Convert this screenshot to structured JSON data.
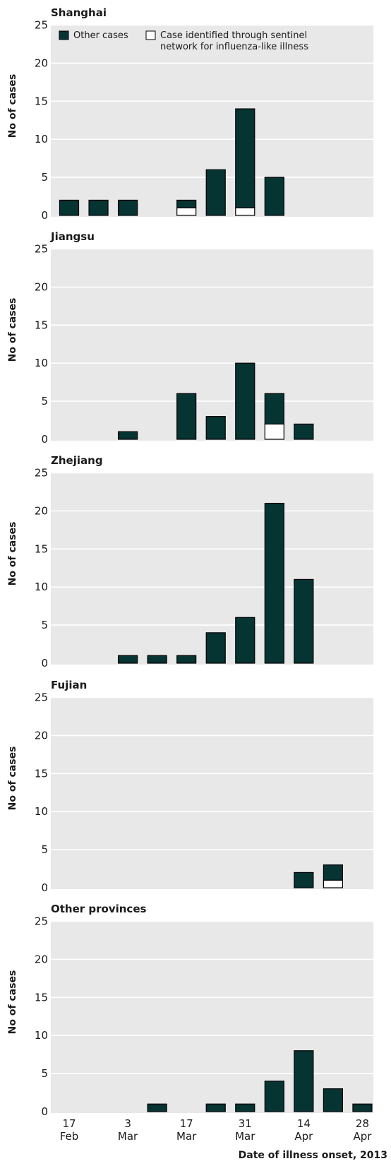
{
  "chart_data": {
    "type": "bar",
    "stacked": true,
    "xlabel": "Date of illness onset, 2013",
    "ylabel": "No of cases",
    "ylim": [
      0,
      25
    ],
    "yticks": [
      0,
      5,
      10,
      15,
      20,
      25
    ],
    "categories": [
      "17 Feb",
      "24 Feb",
      "3 Mar",
      "10 Mar",
      "17 Mar",
      "24 Mar",
      "31 Mar",
      "7 Apr",
      "14 Apr",
      "21 Apr",
      "28 Apr"
    ],
    "x_tick_labels": [
      {
        "category": "17 Feb",
        "line1": "17",
        "line2": "Feb"
      },
      {
        "category": "3 Mar",
        "line1": "3",
        "line2": "Mar"
      },
      {
        "category": "17 Mar",
        "line1": "17",
        "line2": "Mar"
      },
      {
        "category": "31 Mar",
        "line1": "31",
        "line2": "Mar"
      },
      {
        "category": "14 Apr",
        "line1": "14",
        "line2": "Apr"
      },
      {
        "category": "28 Apr",
        "line1": "28",
        "line2": "Apr"
      }
    ],
    "legend": {
      "placement": "top",
      "items": [
        {
          "name": "Other cases",
          "color": "#063433"
        },
        {
          "name": "Case identified through sentinel",
          "name_line2": "network for influenza-like illness",
          "color": "#ffffff"
        }
      ]
    },
    "colors": {
      "other": "#063433",
      "sentinel": "#ffffff",
      "background": "#e8e8e8",
      "grid": "#ffffff"
    },
    "grid": true,
    "panels": [
      {
        "title": "Shanghai",
        "series": [
          {
            "name": "Case identified through sentinel network for influenza-like illness",
            "values": [
              0,
              0,
              0,
              0,
              1,
              0,
              1,
              0,
              0,
              0,
              0
            ]
          },
          {
            "name": "Other cases",
            "values": [
              2,
              2,
              2,
              0,
              1,
              6,
              13,
              5,
              0,
              0,
              0
            ]
          }
        ]
      },
      {
        "title": "Jiangsu",
        "series": [
          {
            "name": "Case identified through sentinel network for influenza-like illness",
            "values": [
              0,
              0,
              0,
              0,
              0,
              0,
              0,
              2,
              0,
              0,
              0
            ]
          },
          {
            "name": "Other cases",
            "values": [
              0,
              0,
              1,
              0,
              6,
              3,
              10,
              4,
              2,
              0,
              0
            ]
          }
        ]
      },
      {
        "title": "Zhejiang",
        "series": [
          {
            "name": "Case identified through sentinel network for influenza-like illness",
            "values": [
              0,
              0,
              0,
              0,
              0,
              0,
              0,
              0,
              0,
              0,
              0
            ]
          },
          {
            "name": "Other cases",
            "values": [
              0,
              0,
              1,
              1,
              1,
              4,
              6,
              21,
              11,
              0,
              0
            ]
          }
        ]
      },
      {
        "title": "Fujian",
        "series": [
          {
            "name": "Case identified through sentinel network for influenza-like illness",
            "values": [
              0,
              0,
              0,
              0,
              0,
              0,
              0,
              0,
              0,
              1,
              0
            ]
          },
          {
            "name": "Other cases",
            "values": [
              0,
              0,
              0,
              0,
              0,
              0,
              0,
              0,
              2,
              2,
              0
            ]
          }
        ]
      },
      {
        "title": "Other provinces",
        "series": [
          {
            "name": "Case identified through sentinel network for influenza-like illness",
            "values": [
              0,
              0,
              0,
              0,
              0,
              0,
              0,
              0,
              0,
              0,
              0
            ]
          },
          {
            "name": "Other cases",
            "values": [
              0,
              0,
              0,
              1,
              0,
              1,
              1,
              4,
              8,
              3,
              1
            ]
          }
        ]
      }
    ]
  }
}
